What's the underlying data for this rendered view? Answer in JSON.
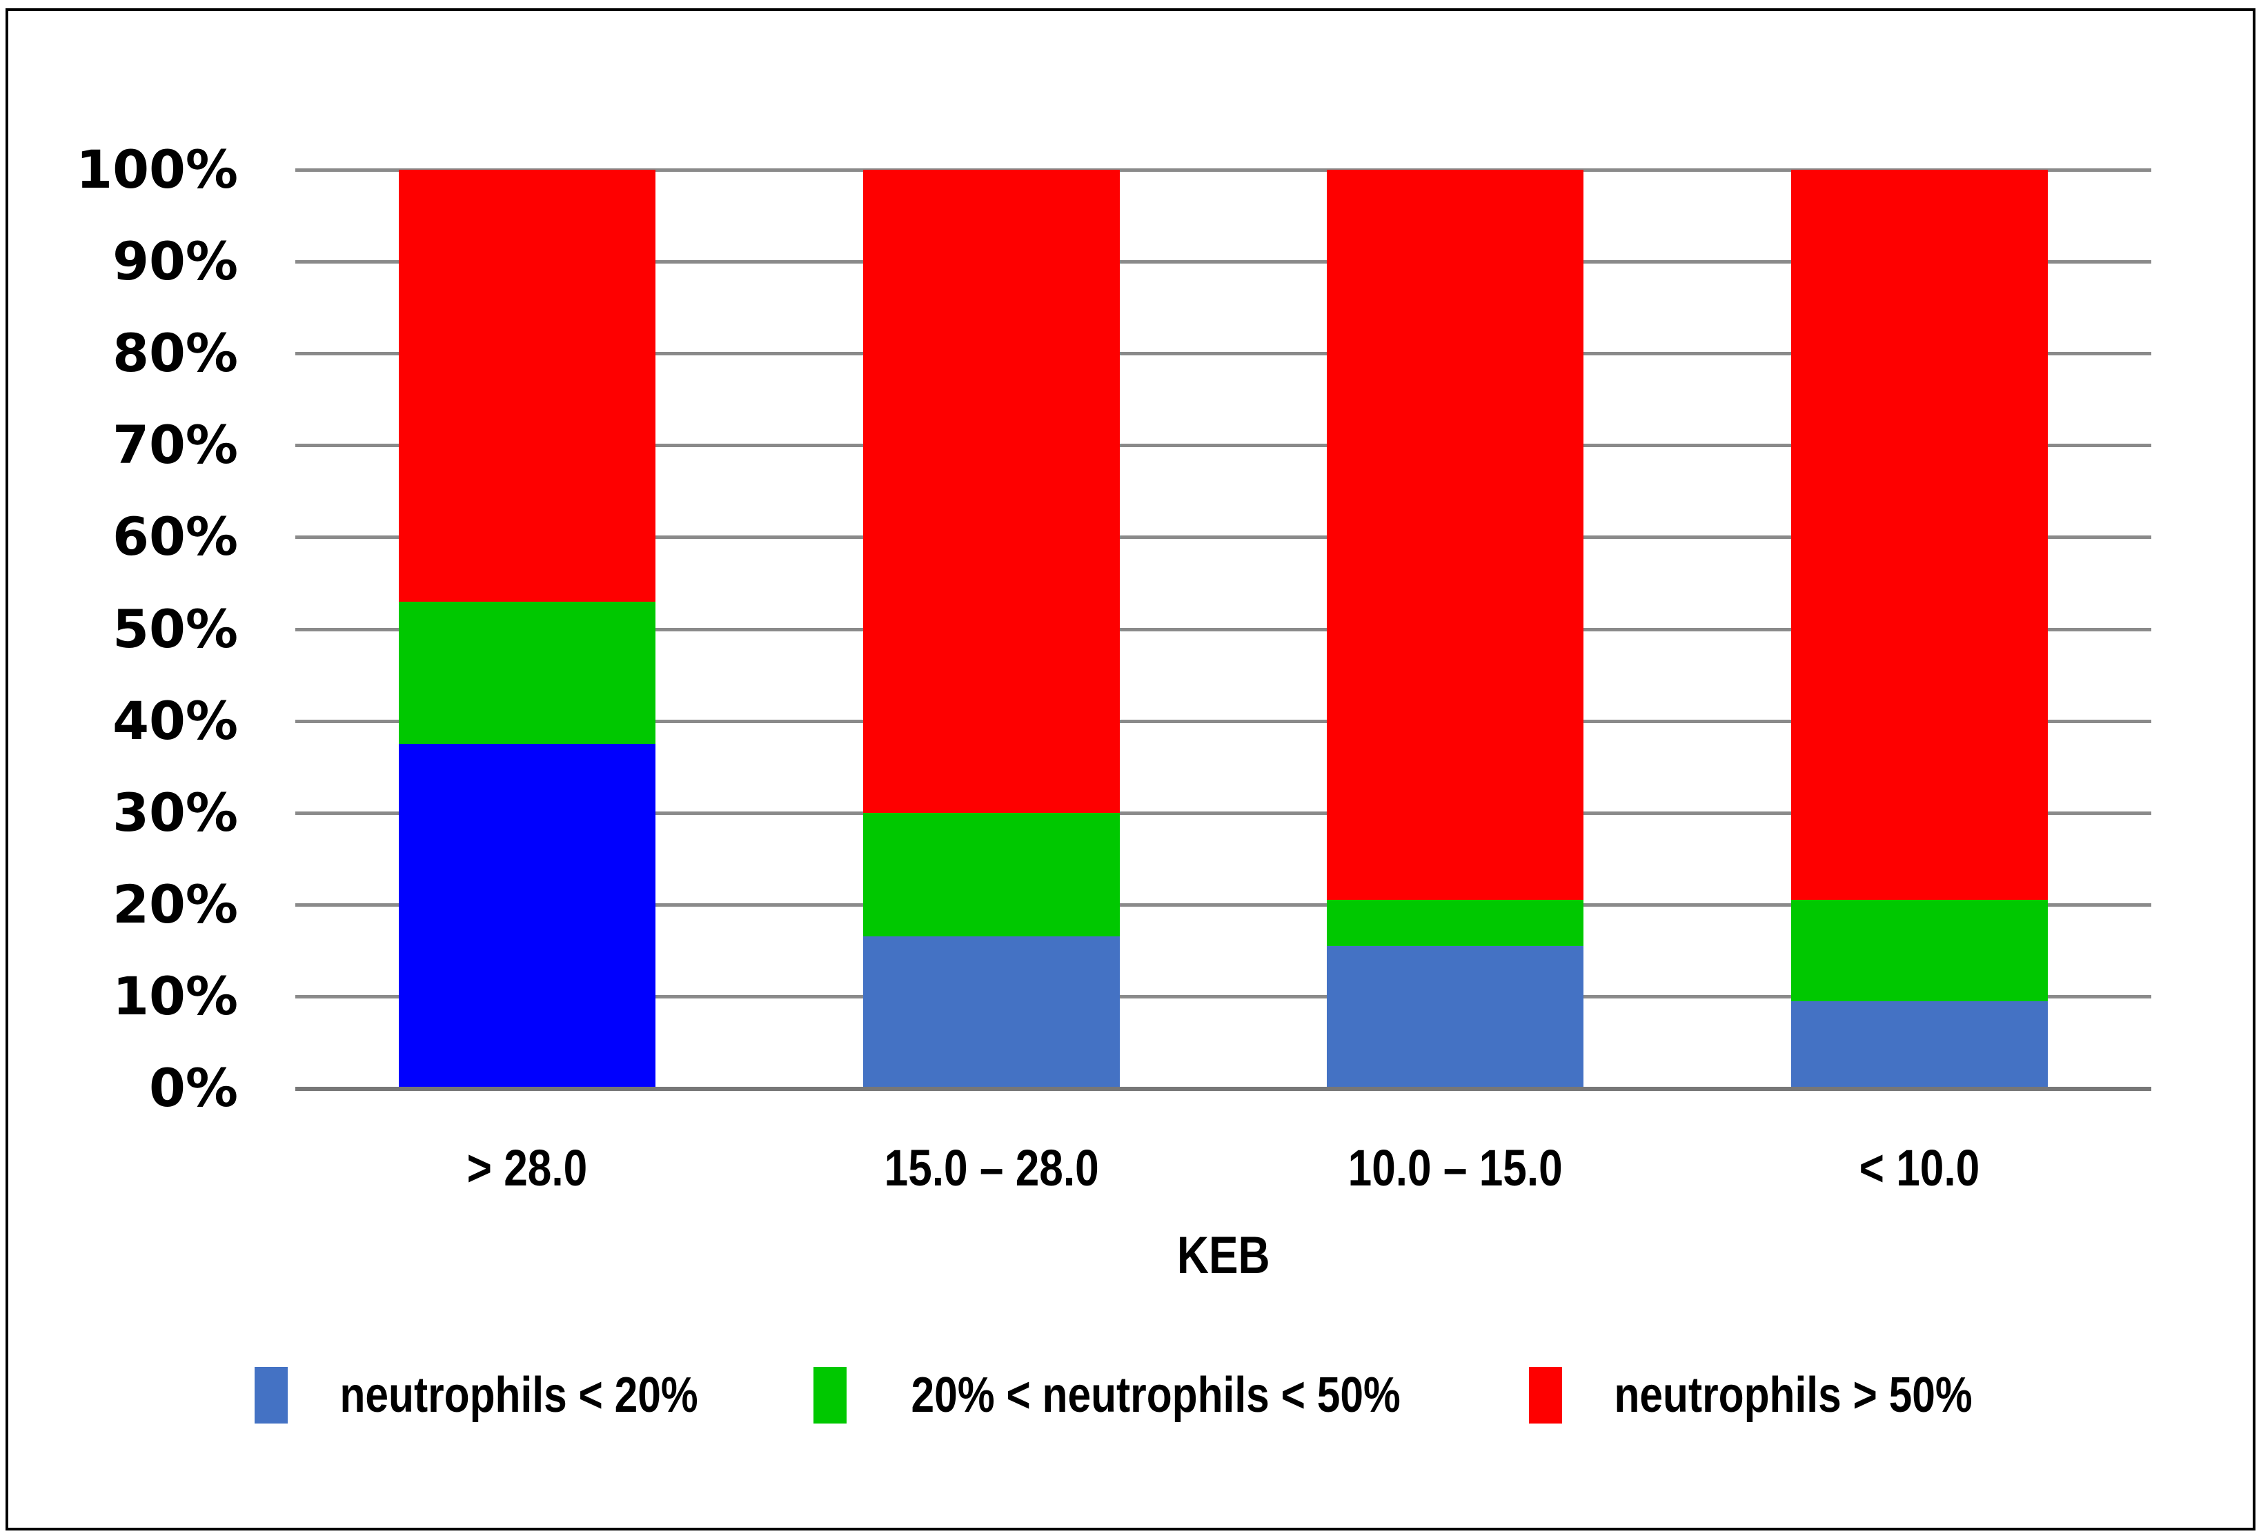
{
  "figure": {
    "background": "#FFFFFF",
    "border_color": "#000000",
    "gridline_color": "#8A8A8A",
    "axis_line_color": "#777777"
  },
  "chart_data": {
    "type": "bar",
    "subtype": "stacked-100-percent-column",
    "title": "",
    "xlabel": "KEB",
    "ylabel": "",
    "ylim": [
      0,
      100
    ],
    "grid": true,
    "legend_position": "bottom",
    "y_ticks": [
      "100%",
      "90%",
      "80%",
      "70%",
      "60%",
      "50%",
      "40%",
      "30%",
      "20%",
      "10%",
      "0%"
    ],
    "categories": [
      "> 28.0",
      "15.0 – 28.0",
      "10.0 – 15.0",
      "< 10.0"
    ],
    "series": [
      {
        "name": "neutrophils < 20%",
        "color": "#4472C4",
        "colors_per_bar": [
          "#0000FE",
          "#4472C4",
          "#4472C4",
          "#4472C4"
        ],
        "values": [
          37.5,
          16.5,
          15.5,
          9.5
        ]
      },
      {
        "name": "20% < neutrophils < 50%",
        "color": "#00C800",
        "values": [
          15.5,
          13.5,
          5.0,
          11.0
        ]
      },
      {
        "name": "neutrophils > 50%",
        "color": "#FE0000",
        "values": [
          47.0,
          70.0,
          79.5,
          79.5
        ]
      }
    ]
  },
  "legend": {
    "items": [
      {
        "label": "neutrophils < 20%",
        "color": "#4472C4"
      },
      {
        "label": "20% < neutrophils < 50%",
        "color": "#00C800"
      },
      {
        "label": "neutrophils > 50%",
        "color": "#FE0000"
      }
    ]
  }
}
